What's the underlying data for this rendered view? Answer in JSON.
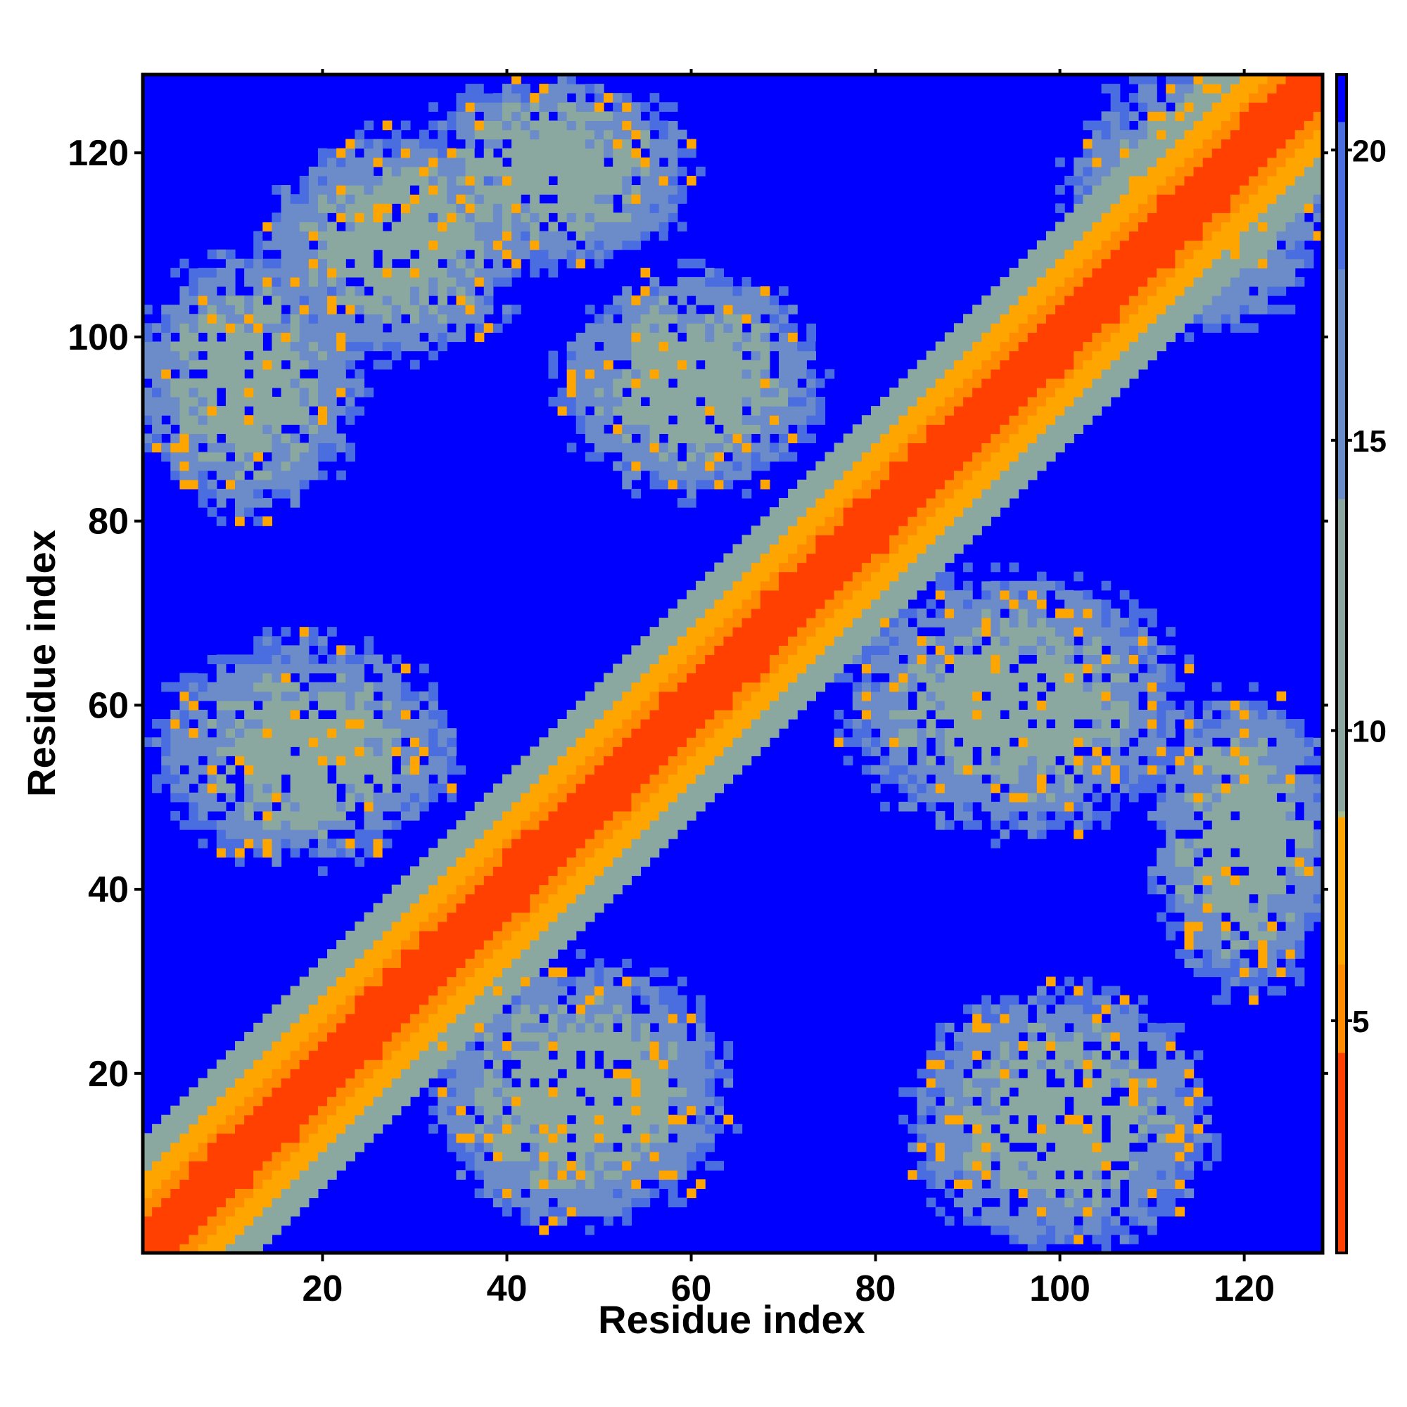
{
  "chart_data": {
    "type": "heatmap",
    "title": "",
    "xlabel": "Residue index",
    "ylabel": "Residue index",
    "xlim": [
      1,
      128
    ],
    "ylim": [
      1,
      128
    ],
    "x_ticks": [
      20,
      40,
      60,
      80,
      100,
      120
    ],
    "y_ticks": [
      20,
      40,
      60,
      80,
      100,
      120
    ],
    "x_tick_labels": [
      "20",
      "40",
      "60",
      "80",
      "100",
      "120"
    ],
    "y_tick_labels": [
      "20",
      "40",
      "60",
      "80",
      "100",
      "120"
    ],
    "colorbar": {
      "range": [
        1,
        21.3
      ],
      "ticks": [
        5,
        10,
        15,
        20
      ],
      "tick_labels": [
        "5",
        "10",
        "15",
        "20"
      ],
      "colors": [
        {
          "value": 1,
          "color": "#ff0000"
        },
        {
          "value": 4.5,
          "color": "#ff4000"
        },
        {
          "value": 6,
          "color": "#ff8c00"
        },
        {
          "value": 8.5,
          "color": "#ffa500"
        },
        {
          "value": 8.6,
          "color": "#a8bd8a"
        },
        {
          "value": 14,
          "color": "#8ba8a0"
        },
        {
          "value": 18,
          "color": "#6b8cc8"
        },
        {
          "value": 20.5,
          "color": "#4a6ee0"
        },
        {
          "value": 21.3,
          "color": "#0000ff"
        }
      ]
    },
    "n_residues": 128,
    "matrix_description": "symmetric residue contact distance map; diagonal band near 1, secondary anti-diagonal contact bands",
    "diagonal_band_halfwidth": 12,
    "contact_regions": [
      {
        "x_center": 12,
        "y_center": 95,
        "x_halfwidth": 12,
        "y_halfwidth": 14
      },
      {
        "x_center": 28,
        "y_center": 110,
        "x_halfwidth": 14,
        "y_halfwidth": 12
      },
      {
        "x_center": 45,
        "y_center": 118,
        "x_halfwidth": 15,
        "y_halfwidth": 10
      },
      {
        "x_center": 60,
        "y_center": 95,
        "x_halfwidth": 14,
        "y_halfwidth": 12
      },
      {
        "x_center": 18,
        "y_center": 55,
        "x_halfwidth": 16,
        "y_halfwidth": 12
      },
      {
        "x_center": 48,
        "y_center": 18,
        "x_halfwidth": 16,
        "y_halfwidth": 14
      },
      {
        "x_center": 95,
        "y_center": 60,
        "x_halfwidth": 18,
        "y_halfwidth": 14
      },
      {
        "x_center": 100,
        "y_center": 15,
        "x_halfwidth": 16,
        "y_halfwidth": 14
      },
      {
        "x_center": 120,
        "y_center": 45,
        "x_halfwidth": 10,
        "y_halfwidth": 16
      },
      {
        "x_center": 115,
        "y_center": 115,
        "x_halfwidth": 14,
        "y_halfwidth": 14
      }
    ],
    "grid": false,
    "legend": "colorbar-right"
  }
}
